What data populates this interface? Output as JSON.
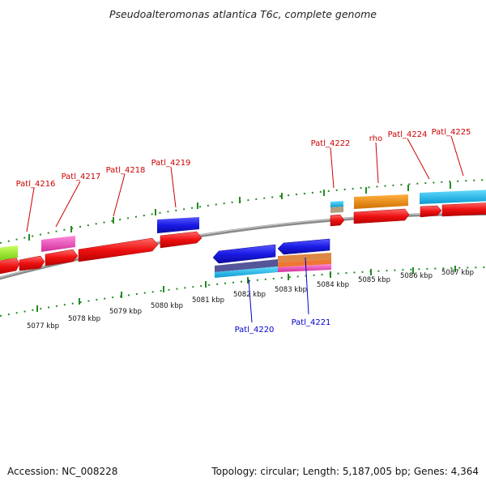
{
  "title": "Pseudoalteromonas atlantica T6c, complete genome",
  "footer": {
    "accession": "Accession: NC_008228",
    "summary": "Topology: circular; Length: 5,187,005 bp; Genes: 4,364"
  },
  "ticks": [
    "5077 kbp",
    "5078 kbp",
    "5079 kbp",
    "5080 kbp",
    "5081 kbp",
    "5082 kbp",
    "5083 kbp",
    "5084 kbp",
    "5085 kbp",
    "5086 kbp",
    "5087 kbp"
  ],
  "genes_top": [
    {
      "name": "Patl_4216"
    },
    {
      "name": "Patl_4217"
    },
    {
      "name": "Patl_4218"
    },
    {
      "name": "Patl_4219"
    },
    {
      "name": "Patl_4222"
    },
    {
      "name": "rho"
    },
    {
      "name": "Patl_4224"
    },
    {
      "name": "Patl_4225"
    }
  ],
  "genes_bottom": [
    {
      "name": "Patl_4220"
    },
    {
      "name": "Patl_4221"
    }
  ],
  "colors": {
    "red": "#ee1111",
    "blue": "#1a1ae6",
    "magenta": "#ee44bb",
    "lime": "#99ee22",
    "orange": "#f08a0a",
    "cyan": "#1ab8ee",
    "backbone": "#8a8a8a",
    "tick": "#228b22"
  }
}
